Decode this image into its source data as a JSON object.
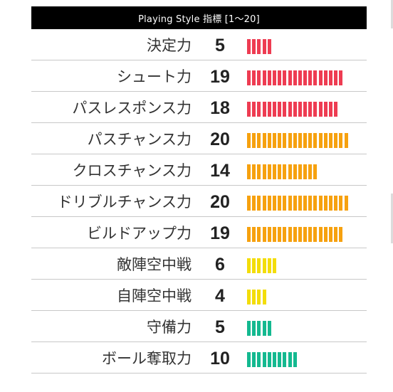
{
  "header": {
    "title": "Playing Style 指標 [1〜20]"
  },
  "colors": {
    "red": "#ee3c52",
    "orange": "#f6a10f",
    "yellow": "#f3dd0a",
    "teal": "#14b990"
  },
  "rows": [
    {
      "label": "決定力",
      "value": "5",
      "level": 5,
      "color": "red"
    },
    {
      "label": "シュート力",
      "value": "19",
      "level": 19,
      "color": "red"
    },
    {
      "label": "パスレスポンス力",
      "value": "18",
      "level": 18,
      "color": "red"
    },
    {
      "label": "パスチャンス力",
      "value": "20",
      "level": 20,
      "color": "orange"
    },
    {
      "label": "クロスチャンス力",
      "value": "14",
      "level": 14,
      "color": "orange"
    },
    {
      "label": "ドリブルチャンス力",
      "value": "20",
      "level": 20,
      "color": "orange"
    },
    {
      "label": "ビルドアップ力",
      "value": "19",
      "level": 19,
      "color": "orange"
    },
    {
      "label": "敵陣空中戦",
      "value": "6",
      "level": 6,
      "color": "yellow"
    },
    {
      "label": "自陣空中戦",
      "value": "4",
      "level": 4,
      "color": "yellow"
    },
    {
      "label": "守備力",
      "value": "5",
      "level": 5,
      "color": "teal"
    },
    {
      "label": "ボール奪取力",
      "value": "10",
      "level": 10,
      "color": "teal"
    }
  ]
}
